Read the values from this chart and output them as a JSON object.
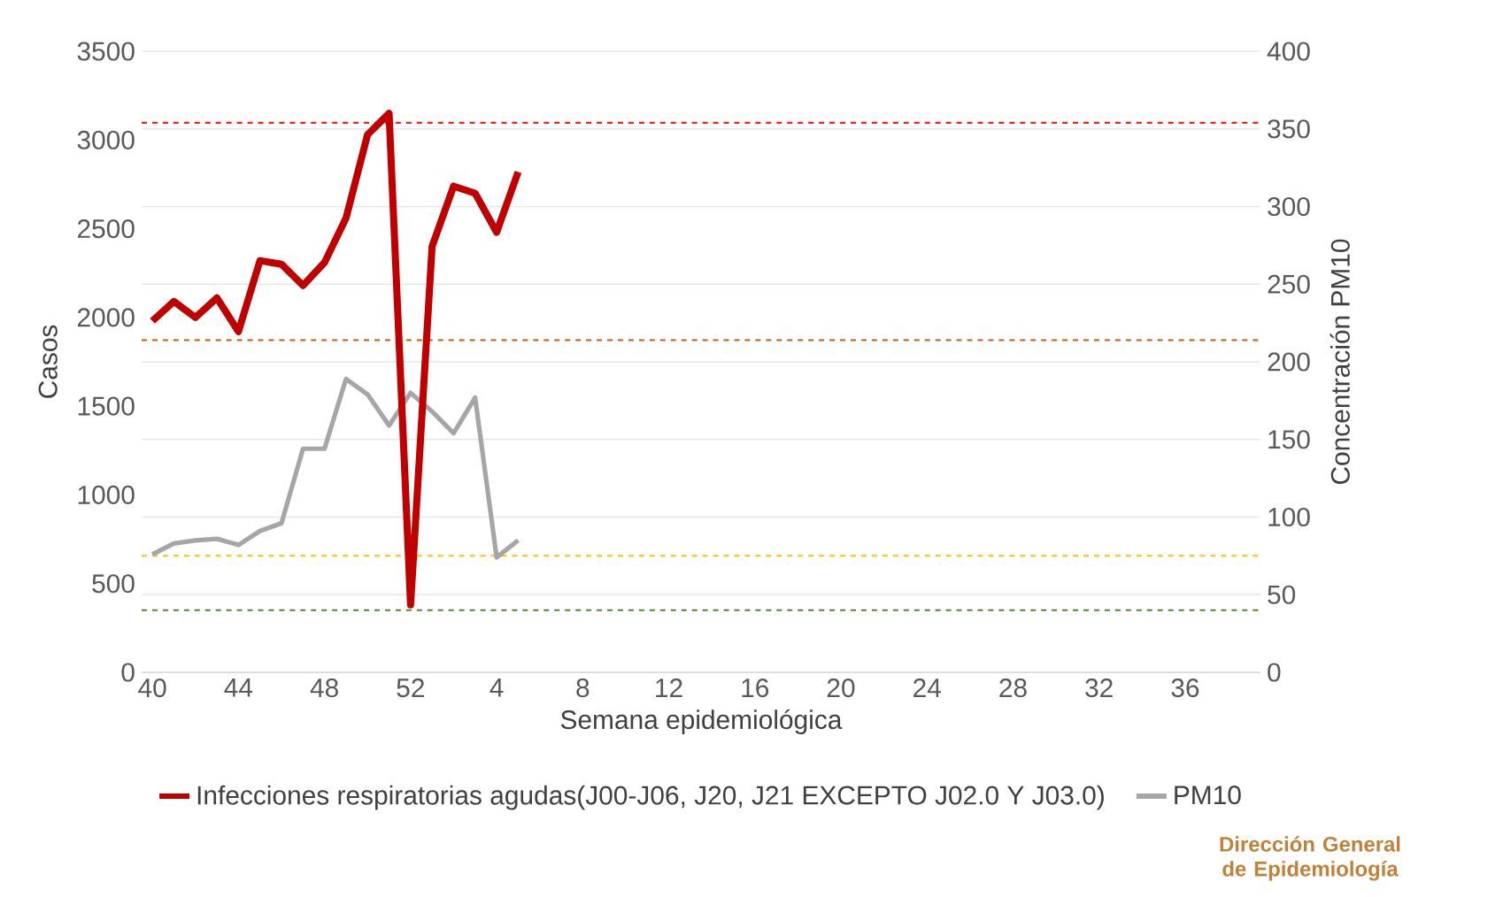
{
  "chart_data": {
    "type": "line",
    "xlabel": "Semana epidemiológica",
    "ylabel": "Casos",
    "y2label": "Concentración PM10",
    "categories": [
      "40",
      null,
      null,
      null,
      "44",
      null,
      null,
      null,
      "48",
      null,
      null,
      null,
      "52",
      null,
      null,
      null,
      "4",
      null,
      null,
      null,
      "8",
      null,
      null,
      null,
      "12",
      null,
      null,
      null,
      "16",
      null,
      null,
      null,
      "20",
      null,
      null,
      null,
      "24",
      null,
      null,
      null,
      "28",
      null,
      null,
      null,
      "32",
      null,
      null,
      null,
      "36",
      null,
      null,
      null
    ],
    "series": [
      {
        "name": "Infecciones respiratorias agudas(J00-J06, J20, J21 EXCEPTO J02.0 Y J03.0)",
        "color": "#c00000",
        "values": [
          1980,
          2090,
          2000,
          2110,
          1920,
          2320,
          2300,
          2180,
          2310,
          2560,
          3030,
          3150,
          380,
          2400,
          2740,
          2700,
          2480,
          2820,
          null,
          null,
          null,
          null,
          null,
          null,
          null,
          null,
          null,
          null,
          null,
          null,
          null,
          null,
          null,
          null,
          null,
          null,
          null,
          null,
          null,
          null,
          null,
          null,
          null,
          null,
          null,
          null,
          null,
          null,
          null,
          null,
          null,
          null
        ]
      },
      {
        "name": "PM10",
        "color": "#a6a6a6",
        "axis": "y2",
        "values": [
          76,
          83,
          85,
          86,
          82,
          91,
          96,
          144,
          144,
          189,
          179,
          159,
          180,
          168,
          154,
          177,
          74,
          85,
          null,
          null,
          null,
          null,
          null,
          null,
          null,
          null,
          null,
          null,
          null,
          null,
          null,
          null,
          null,
          null,
          null,
          null,
          null,
          null,
          null,
          null,
          null,
          null,
          null,
          null,
          null,
          null,
          null,
          null,
          null,
          null,
          null,
          null
        ]
      }
    ],
    "ylim": [
      0,
      3500
    ],
    "yticks": [
      0,
      500,
      1000,
      1500,
      2000,
      2500,
      3000,
      3500
    ],
    "y2lim": [
      0,
      400
    ],
    "y2ticks": [
      0,
      50,
      100,
      150,
      200,
      250,
      300,
      350,
      400
    ],
    "grid": "y",
    "legend": "bottom",
    "ref_lines": [
      {
        "axis": "y2",
        "value": 354,
        "color": "#ff0000",
        "line_style": "dashed"
      },
      {
        "axis": "y2",
        "value": 214,
        "color": "#c55a11",
        "line_style": "dashed"
      },
      {
        "axis": "y2",
        "value": 75,
        "color": "#ffc000",
        "line_style": "dashed"
      },
      {
        "axis": "y2",
        "value": 40,
        "color": "#548235",
        "line_style": "dashed"
      }
    ],
    "annotations": [
      "Dirección General de Epidemiología"
    ]
  }
}
